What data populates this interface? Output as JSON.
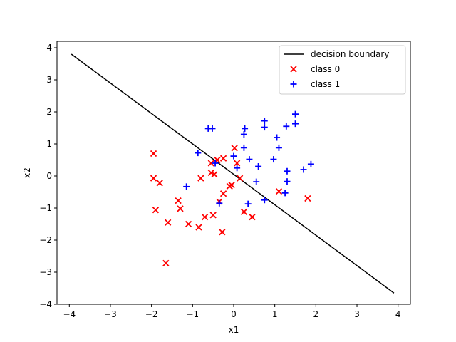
{
  "chart_data": {
    "type": "scatter",
    "xlabel": "x1",
    "ylabel": "x2",
    "xlim": [
      -4.3,
      4.3
    ],
    "ylim": [
      -4.0,
      4.2
    ],
    "xticks": [
      -4,
      -3,
      -2,
      -1,
      0,
      1,
      2,
      3,
      4
    ],
    "yticks": [
      -4,
      -3,
      -2,
      -1,
      0,
      1,
      2,
      3,
      4
    ],
    "grid": false,
    "legend_position": "top-right",
    "line": {
      "name": "decision boundary",
      "color": "#000000",
      "x": [
        -3.95,
        3.9
      ],
      "y": [
        3.8,
        -3.65
      ]
    },
    "series": [
      {
        "name": "class 0",
        "marker": "x",
        "color": "#ff0000",
        "points": [
          [
            -1.95,
            0.7
          ],
          [
            -1.95,
            -0.07
          ],
          [
            -1.8,
            -0.22
          ],
          [
            -1.9,
            -1.06
          ],
          [
            -1.35,
            -0.77
          ],
          [
            -1.3,
            -1.02
          ],
          [
            -1.6,
            -1.45
          ],
          [
            -1.65,
            -2.72
          ],
          [
            -1.1,
            -1.5
          ],
          [
            -0.85,
            -1.6
          ],
          [
            -0.8,
            -0.07
          ],
          [
            -0.7,
            -1.28
          ],
          [
            -0.55,
            0.4
          ],
          [
            -0.55,
            0.1
          ],
          [
            -0.47,
            0.05
          ],
          [
            -0.4,
            0.5
          ],
          [
            -0.5,
            -1.22
          ],
          [
            -0.35,
            -0.8
          ],
          [
            -0.25,
            0.55
          ],
          [
            -0.25,
            -0.55
          ],
          [
            -0.28,
            -1.75
          ],
          [
            -0.1,
            -0.32
          ],
          [
            -0.05,
            -0.28
          ],
          [
            0.02,
            0.87
          ],
          [
            0.08,
            0.4
          ],
          [
            0.15,
            -0.07
          ],
          [
            0.25,
            -1.12
          ],
          [
            0.45,
            -1.28
          ],
          [
            1.1,
            -0.48
          ],
          [
            1.8,
            -0.7
          ]
        ]
      },
      {
        "name": "class 1",
        "marker": "+",
        "color": "#0000ff",
        "points": [
          [
            -1.15,
            -0.33
          ],
          [
            -0.87,
            0.72
          ],
          [
            -0.62,
            1.48
          ],
          [
            -0.52,
            1.48
          ],
          [
            -0.45,
            0.4
          ],
          [
            -0.35,
            -0.85
          ],
          [
            0.0,
            0.62
          ],
          [
            0.08,
            0.25
          ],
          [
            0.25,
            1.3
          ],
          [
            0.27,
            1.48
          ],
          [
            0.25,
            0.88
          ],
          [
            0.35,
            -0.87
          ],
          [
            0.38,
            0.52
          ],
          [
            0.55,
            -0.18
          ],
          [
            0.6,
            0.3
          ],
          [
            0.75,
            1.72
          ],
          [
            0.75,
            1.52
          ],
          [
            0.75,
            -0.75
          ],
          [
            0.97,
            0.52
          ],
          [
            1.05,
            1.2
          ],
          [
            1.1,
            0.88
          ],
          [
            1.25,
            -0.53
          ],
          [
            1.28,
            1.55
          ],
          [
            1.3,
            0.15
          ],
          [
            1.3,
            -0.17
          ],
          [
            1.5,
            1.93
          ],
          [
            1.5,
            1.63
          ],
          [
            1.7,
            0.2
          ],
          [
            1.88,
            0.37
          ]
        ]
      }
    ]
  }
}
